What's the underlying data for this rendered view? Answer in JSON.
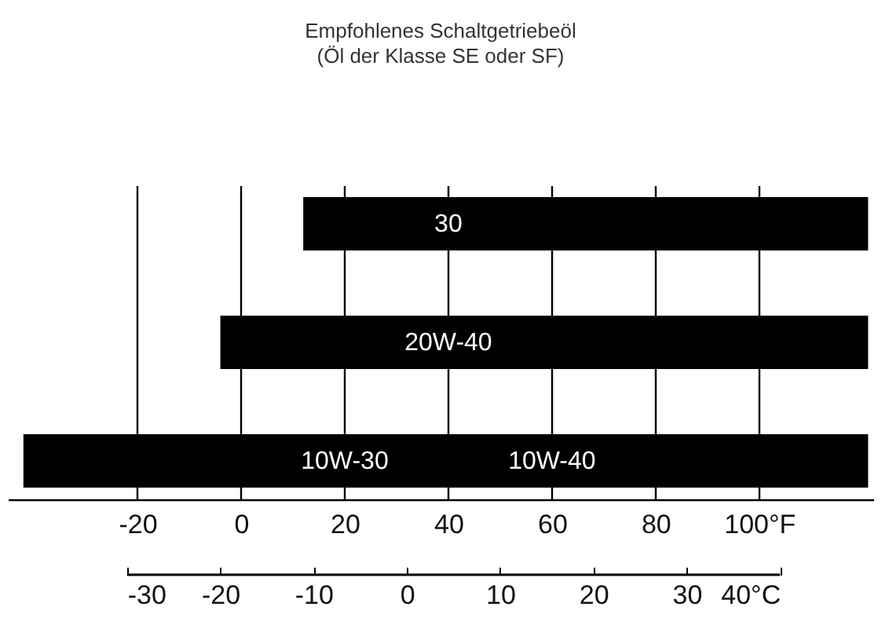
{
  "chart_data": {
    "type": "bar",
    "orientation": "horizontal",
    "title": "Empfohlenes Schaltgetriebeöl",
    "subtitle": "(Öl der Klasse SE oder SF)",
    "categories": [
      "30",
      "20W-40",
      null
    ],
    "base": [
      12,
      -4,
      -42
    ],
    "values": [
      109,
      125,
      163
    ],
    "color": "#000000",
    "xlim": [
      -45,
      122
    ],
    "xticks": [
      -20,
      0,
      20,
      40,
      60,
      80,
      {
        "value": 100,
        "label": "100°F"
      }
    ],
    "x2lim": [
      -30,
      40
    ],
    "x2ticks": [
      -30,
      -20,
      -10,
      0,
      10,
      20,
      30,
      {
        "value": 40,
        "label": "40°C"
      }
    ],
    "grid": "x",
    "annotations": [
      "10W-30",
      "10W-40"
    ]
  }
}
